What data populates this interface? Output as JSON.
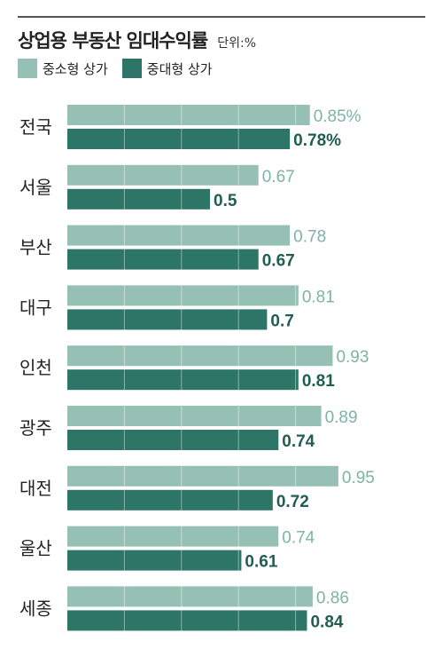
{
  "title": "상업용 부동산 임대수익률",
  "unit": "단위:%",
  "colors": {
    "small": "#96c0b3",
    "mid": "#2c7567",
    "small_text": "#7fb3a4",
    "mid_text": "#1f5e51"
  },
  "chart_data": {
    "type": "bar",
    "orientation": "horizontal",
    "categories": [
      "전국",
      "서울",
      "부산",
      "대구",
      "인천",
      "광주",
      "대전",
      "울산",
      "세종"
    ],
    "series": [
      {
        "name": "중소형 상가",
        "values": [
          0.85,
          0.67,
          0.78,
          0.81,
          0.93,
          0.89,
          0.95,
          0.74,
          0.86
        ],
        "labels": [
          "0.85%",
          "0.67",
          "0.78",
          "0.81",
          "0.93",
          "0.89",
          "0.95",
          "0.74",
          "0.86"
        ]
      },
      {
        "name": "중대형 상가",
        "values": [
          0.78,
          0.5,
          0.67,
          0.7,
          0.81,
          0.74,
          0.72,
          0.61,
          0.84
        ],
        "labels": [
          "0.78%",
          "0.5",
          "0.67",
          "0.7",
          "0.81",
          "0.74",
          "0.72",
          "0.61",
          "0.84"
        ]
      }
    ],
    "xlim": [
      0,
      1.0
    ],
    "grid": true,
    "legend": "top-left"
  }
}
